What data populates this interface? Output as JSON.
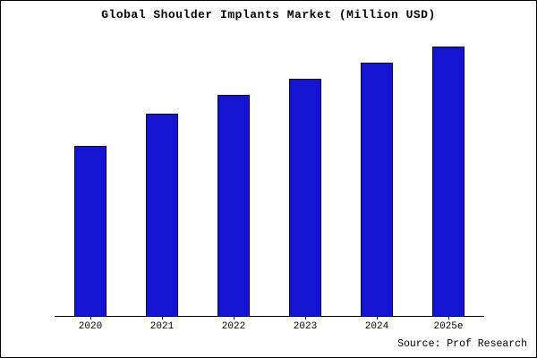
{
  "chart_data": {
    "type": "bar",
    "title": "Global Shoulder Implants Market (Million USD)",
    "categories": [
      "2020",
      "2021",
      "2022",
      "2023",
      "2024",
      "2025e"
    ],
    "values": [
      63,
      75,
      82,
      88,
      94,
      100
    ],
    "xlabel": "",
    "ylabel": "",
    "ylim": [
      0,
      102
    ],
    "y_axis_labels_visible": false,
    "grid": false,
    "legend_position": "none",
    "bar_color": "#1414d2",
    "bar_border_color": "#000066"
  },
  "source": "Source: Prof Research"
}
